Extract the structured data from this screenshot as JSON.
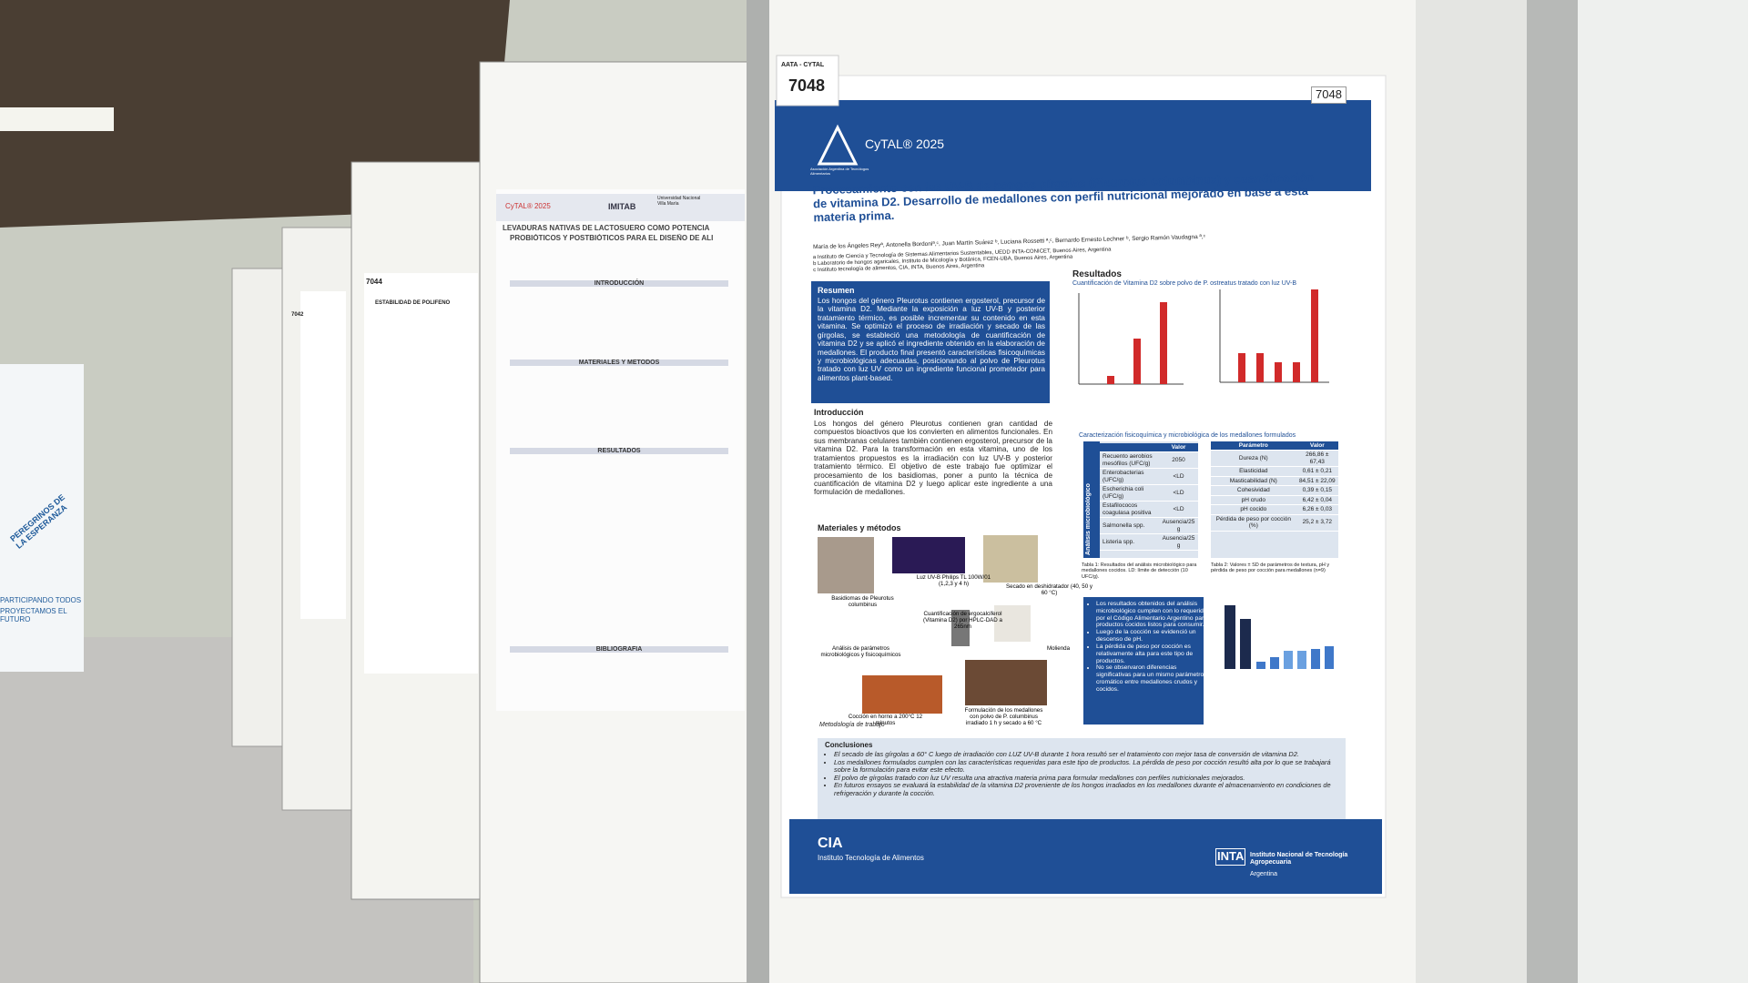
{
  "main_poster": {
    "sticker": {
      "org": "AATA - CYTAL",
      "number": "7048"
    },
    "header": {
      "event": "CyTAL® 2025",
      "code": "7048",
      "assoc": "Asociación Argentina de Tecnólogos Alimentarios"
    },
    "title": "Procesamiento con luz UV-B de hongos gírgolas (Pleurotus columbinus) y cuantificación de vitamina D2. Desarrollo de medallones con perfil nutricional mejorado en base a esta materia prima.",
    "authors": "María de los Ángeles Reyª, Antonella Bordoniª,ᶜ, Juan Martín Suárez ᵇ, Luciana Rossetti ª,ᶜ, Bernardo Ernesto Lechner ᵇ, Sergio Ramón Vaudagna ª,ᶜ",
    "affiliations": [
      "a Instituto de Ciencia y Tecnología de Sistemas Alimentarios Sustentables, UEDD INTA-CONICET, Buenos Aires, Argentina",
      "b Laboratorio de hongos agaricales, Instituto de Micología y Botánica, FCEN-UBA, Buenos Aires, Argentina",
      "c Instituto tecnología de alimentos, CIA, INTA, Buenos Aires, Argentina"
    ],
    "resumen": {
      "heading": "Resumen",
      "text": "Los hongos del género Pleurotus contienen ergosterol, precursor de la vitamina D2. Mediante la exposición a luz UV-B y posterior tratamiento térmico, es posible incrementar su contenido en esta vitamina. Se optimizó el proceso de irradiación y secado de las gírgolas, se estableció una metodología de cuantificación de vitamina D2 y se aplicó el ingrediente obtenido en la elaboración de medallones. El producto final presentó características fisicoquímicas y microbiológicas adecuadas, posicionando al polvo de Pleurotus tratado con luz UV como un ingrediente funcional prometedor para alimentos plant-based."
    },
    "introduccion": {
      "heading": "Introducción",
      "text": "Los hongos del género Pleurotus contienen gran cantidad de compuestos bioactivos que los convierten en alimentos funcionales. En sus membranas celulares también contienen ergosterol, precursor de la vitamina D2. Para la transformación en esta vitamina, uno de los tratamientos propuestos es la irradiación con luz UV-B y posterior tratamiento térmico. El objetivo de este trabajo fue optimizar el procesamiento de los basidiomas, poner a punto la técnica de cuantificación de vitamina D2 y luego aplicar este ingrediente a una formulación de medallones."
    },
    "materiales": {
      "heading": "Materiales y métodos",
      "steps": [
        "Basidiomas de Pleurotus columbinus",
        "Luz UV-B Philips TL 100W/01 (1,2,3 y 4 h)",
        "Secado en deshidratador (40, 50 y 60 °C)",
        "Cuantificación de ergocalciferol (Vitamina D2) por HPLC-DAD a 265nm",
        "Molienda",
        "Análisis de parámetros microbiológicos y fisicoquímicos",
        "Cocción en horno a 200°C 12 minutos",
        "Formulación de los medallones con polvo de P. columbinus irradiado 1 h y secado a 60 °C"
      ],
      "caption": "Metodología de trabajo"
    },
    "resultados": {
      "heading": "Resultados",
      "chart_title": "Cuantificación de Vitamina D2 sobre polvo de P. ostreatus tratado con luz UV-B",
      "table_title": "Caracterización fisicoquímica y microbiológica de los medallones formulados"
    },
    "table1": {
      "side": "Análisis microbiológico",
      "header": "Valor",
      "rows": [
        [
          "Recuento aerobios mesófilos (UFC/g)",
          "2050"
        ],
        [
          "Enterobacterias (UFC/g)",
          "<LD"
        ],
        [
          "Escherichia coli (UFC/g)",
          "<LD"
        ],
        [
          "Estafilococos coagulasa positiva",
          "<LD"
        ],
        [
          "Salmonella spp.",
          "Ausencia/25 g"
        ],
        [
          "Listeria spp.",
          "Ausencia/25 g"
        ]
      ],
      "caption": "Tabla 1: Resultados del análisis microbiológico para medallones cocidos. LD: límite de detección (10 UFC/g)."
    },
    "table2": {
      "header": [
        "Parámetro",
        "Valor"
      ],
      "rows": [
        [
          "Dureza (N)",
          "266,86 ± 67,43"
        ],
        [
          "Elasticidad",
          "0,61 ± 0,21"
        ],
        [
          "Masticabilidad (N)",
          "84,51 ± 22,09"
        ],
        [
          "Cohesividad",
          "0,39 ± 0,15"
        ],
        [
          "pH crudo",
          "6,42 ± 0,04"
        ],
        [
          "pH cocido",
          "6,26 ± 0,03"
        ],
        [
          "Pérdida de peso por cocción (%)",
          "25,2 ± 3,72"
        ]
      ],
      "caption": "Tabla 2: Valores ± SD de parámetros de textura, pH y pérdida de peso por cocción para medallones (n=9)"
    },
    "bullets": [
      "Los resultados obtenidos del análisis microbiológico cumplen con lo requerido por el Código Alimentario Argentino para productos cocidos listos para consumir.",
      "Luego de la cocción se evidenció un descenso de pH.",
      "La pérdida de peso por cocción es relativamente alta para este tipo de productos.",
      "No se observaron diferencias significativas para un mismo parámetro cromático entre medallones crudos y cocidos."
    ],
    "conclusiones": {
      "heading": "Conclusiones",
      "items": [
        "El secado de las gírgolas a 60° C luego de irradiación con LUZ UV-B durante 1 hora resultó ser el tratamiento con mejor tasa de conversión de vitamina D2.",
        "Los medallones formulados cumplen con las características requeridas para este tipo de productos. La pérdida de peso por cocción resultó alta por lo que se trabajará sobre la formulación para evitar este efecto.",
        "El polvo de gírgolas tratado con luz UV resulta una atractiva materia prima para formular medallones con perfiles nutricionales mejorados.",
        "En futuros ensayos se evaluará la estabilidad de la vitamina D2 proveniente de los hongos irradiados en los medallones durante el almacenamiento en condiciones de refrigeración y durante la cocción."
      ]
    },
    "footer": {
      "cia": "CIA",
      "cia_name": "Instituto Tecnología de Alimentos",
      "inta": "INTA",
      "inta_name": "Instituto Nacional de Tecnología Agropecuaria",
      "inta_country": "Argentina"
    }
  },
  "left_poster": {
    "event": "CyTAL® 2025",
    "institute": "IMITAB",
    "university": "Universidad Nacional Villa María",
    "title": "LEVADURAS NATIVAS DE LACTOSUERO COMO POTENCIA",
    "title2": "PROBIÓTICOS Y POSTBIÓTICOS PARA EL DISEÑO DE ALI",
    "sections": [
      "INTRODUCCIÓN",
      "MATERIALES Y METODOS",
      "RESULTADOS",
      "BIBLIOGRAFIA"
    ]
  },
  "far_posters": {
    "number": "7044",
    "title": "ESTABILIDAD DE POLIFENO",
    "number2": "7042"
  },
  "banner": {
    "line1": "PEREGRINOS DE LA ESPERANZA",
    "line2": "PARTICIPANDO TODOS",
    "line3": "PROYECTAMOS EL FUTURO"
  }
}
